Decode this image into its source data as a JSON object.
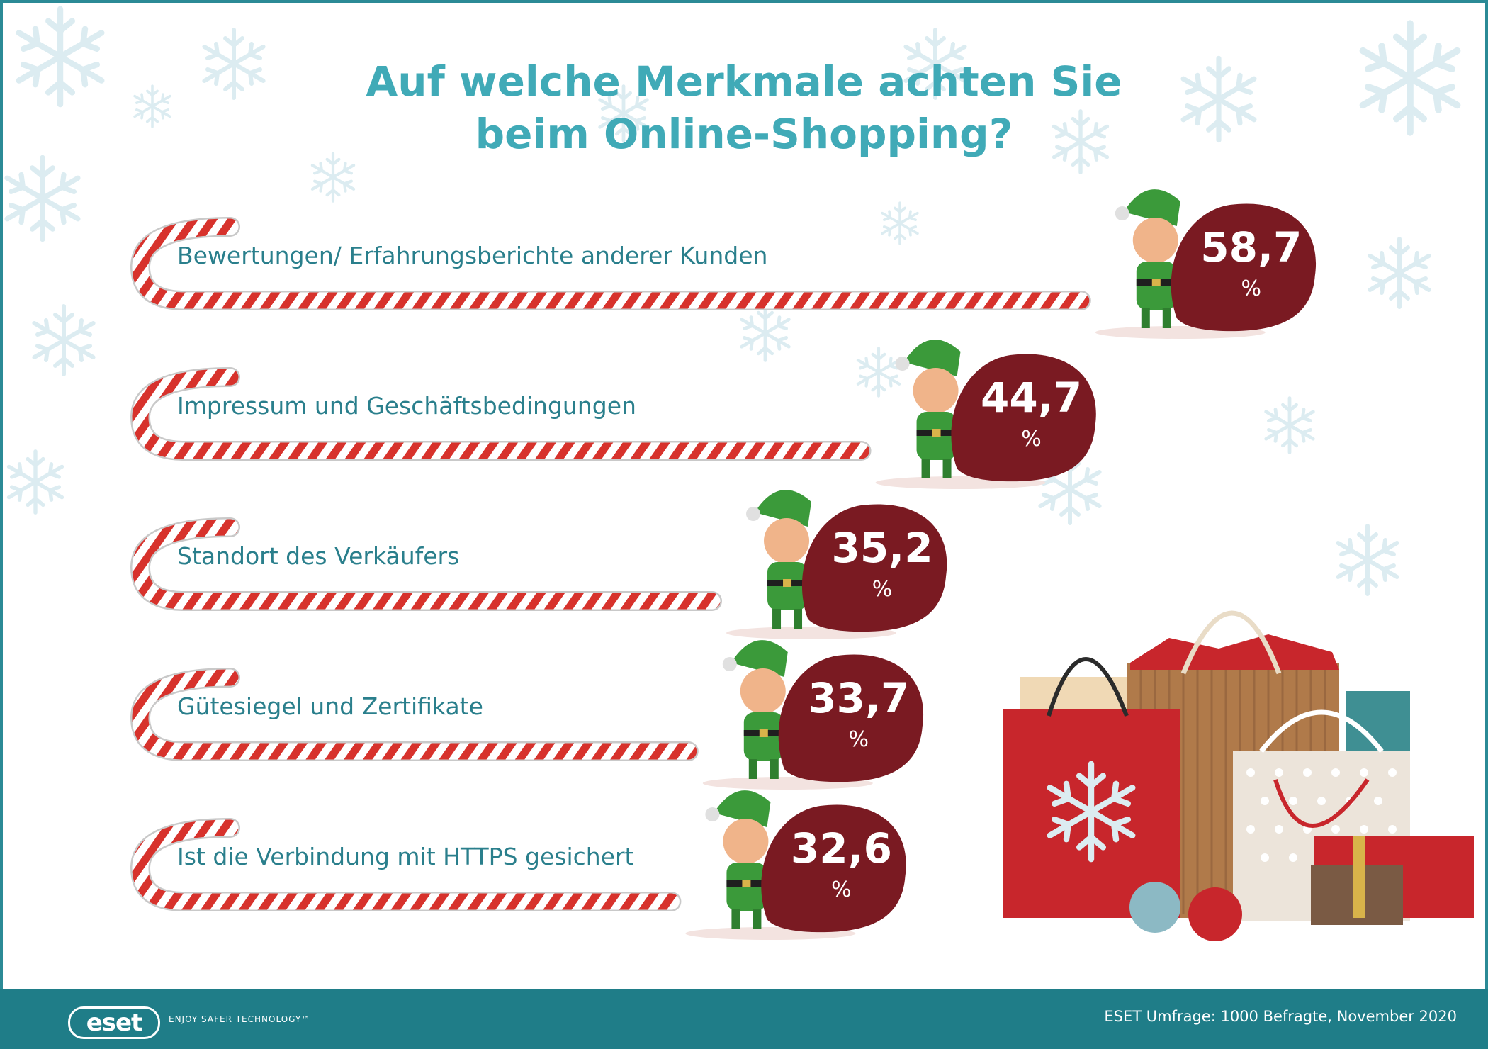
{
  "title_lines": [
    "Auf welche Merkmale achten Sie",
    "beim Online-Shopping?"
  ],
  "chart_data": {
    "type": "bar",
    "orientation": "horizontal",
    "title": "Auf welche Merkmale achten Sie beim Online-Shopping?",
    "categories": [
      "Bewertungen/ Erfahrungsberichte anderer Kunden",
      "Impressum und Geschäftsbedingungen",
      "Standort des Verkäufers",
      "Gütesiegel und Zertifikate",
      "Ist die Verbindung mit HTTPS gesichert"
    ],
    "values": [
      58.7,
      44.7,
      35.2,
      33.7,
      32.6
    ],
    "value_labels": [
      "58,7",
      "44,7",
      "35,2",
      "33,7",
      "32,6"
    ],
    "unit": "%",
    "colors": {
      "title": "#40aab7",
      "category_text": "#2a7f8c",
      "cane_red": "#d7322c",
      "sack": "#7a1a22",
      "footer": "#1f7d88"
    }
  },
  "footer": {
    "logo": "eset",
    "tagline": "ENJOY SAFER TECHNOLOGY™",
    "source": "ESET Umfrage: 1000 Befragte, November 2020"
  },
  "icons": [
    "snowflake-icon",
    "candy-cane-icon",
    "elf-icon",
    "gift-sack-icon",
    "shopping-bags-icon"
  ]
}
